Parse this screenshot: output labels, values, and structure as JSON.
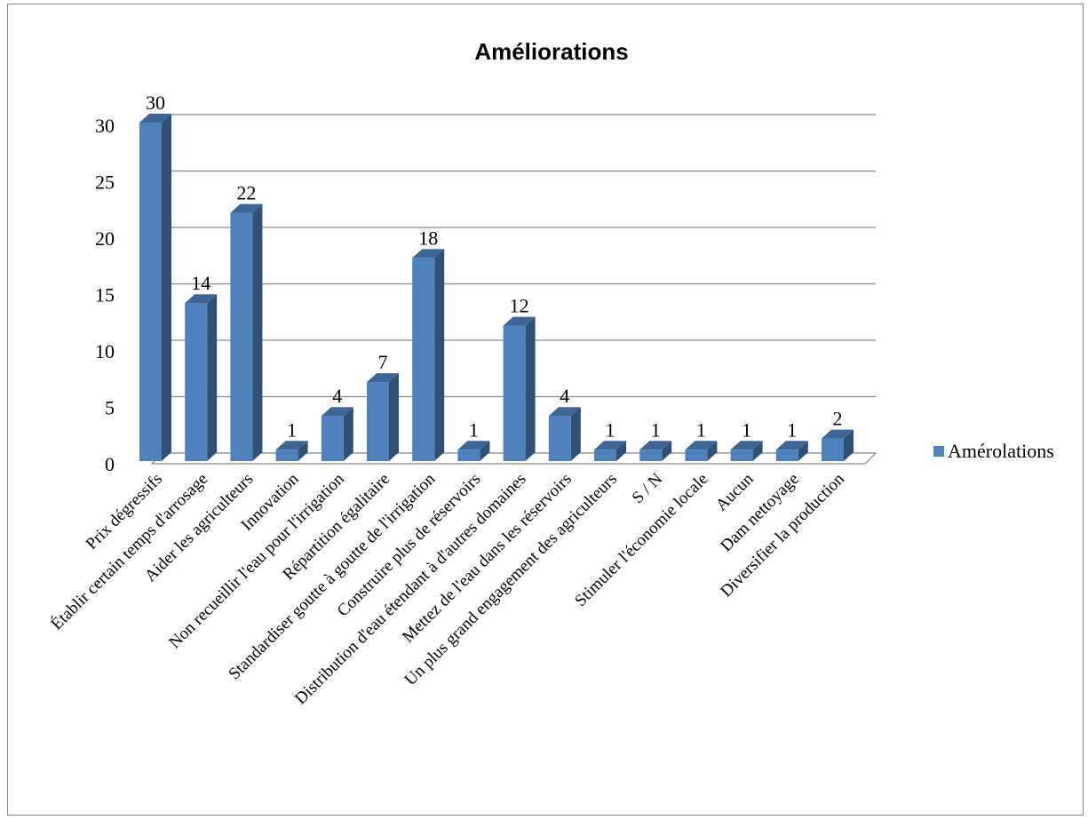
{
  "chart_data": {
    "type": "bar",
    "title": "Améliorations",
    "categories": [
      "Prix dégressifs",
      "Établir certain temps d'arrosage",
      "Aider les agriculteurs",
      "Innovation",
      "Non recueillir l'eau pour l'irrigation",
      "Répartition égalitaire",
      "Standardiser goutte à goutte de l'irrigation",
      "Construire plus de réservoirs",
      "Distribution d'eau étendant à d'autres domaines",
      "Mettez de l'eau dans les réservoirs",
      "Un plus grand engagement des agriculteurs",
      "S / N",
      "Stimuler l'économie locale",
      "Aucun",
      "Dam nettoyage",
      "Diversifier la production"
    ],
    "series": [
      {
        "name": "Amérolations",
        "values": [
          30,
          14,
          22,
          1,
          4,
          7,
          18,
          1,
          12,
          4,
          1,
          1,
          1,
          1,
          1,
          2
        ],
        "color": "#4f81bd"
      }
    ],
    "ylim": [
      0,
      30
    ],
    "yticks": [
      0,
      5,
      10,
      15,
      20,
      25,
      30
    ],
    "xlabel": "",
    "ylabel": "",
    "grid": true,
    "style": "3d-column",
    "legend_position": "right"
  }
}
